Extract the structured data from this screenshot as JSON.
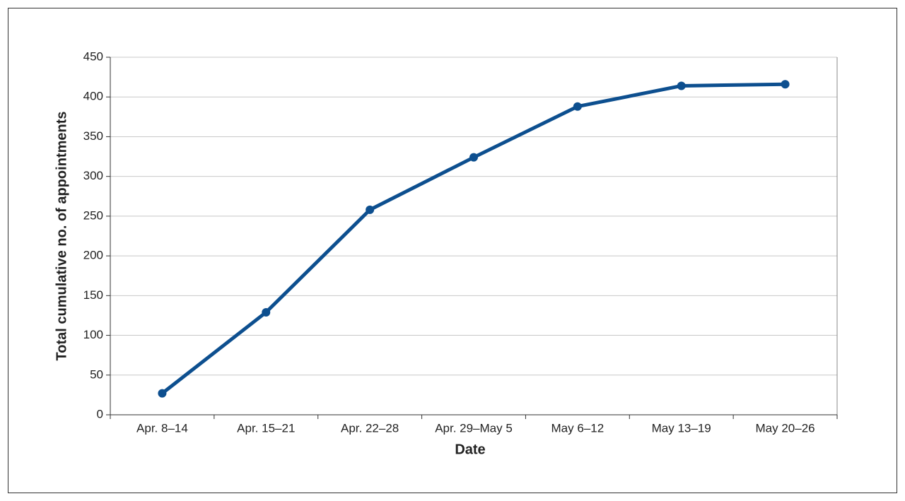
{
  "chart_data": {
    "type": "line",
    "x_label": "Date",
    "y_label": "Total cumulative no. of appointments",
    "categories": [
      "Apr. 8–14",
      "Apr. 15–21",
      "Apr. 22–28",
      "Apr. 29–May 5",
      "May 6–12",
      "May 13–19",
      "May 20–26"
    ],
    "series": [
      {
        "name": "Total cumulative appointments",
        "color": "#0d4f8f",
        "values": [
          27,
          129,
          258,
          324,
          388,
          414,
          416
        ]
      }
    ],
    "ylim": [
      0,
      450
    ],
    "yticks": [
      0,
      50,
      100,
      150,
      200,
      250,
      300,
      350,
      400,
      450
    ],
    "grid": true
  }
}
